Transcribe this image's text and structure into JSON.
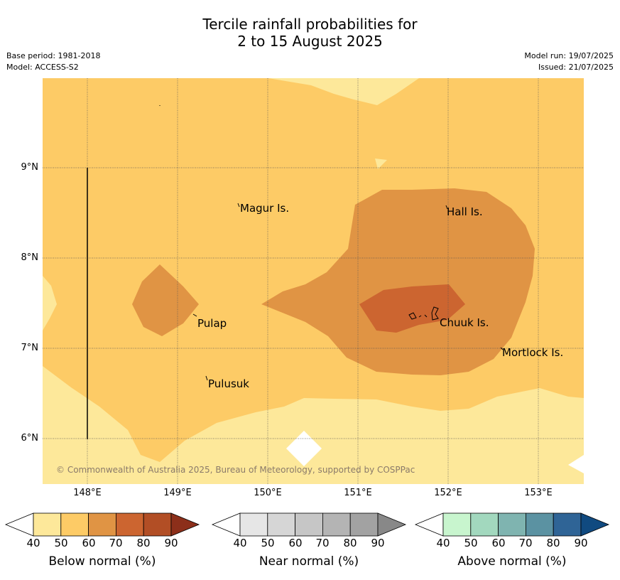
{
  "title": {
    "line1": "Tercile rainfall probabilities for",
    "line2": "2 to 15 August 2025"
  },
  "meta": {
    "base_period": "Base period: 1981-2018",
    "model": "Model: ACCESS-S2",
    "model_run": "Model run: 19/07/2025",
    "issued": "Issued: 21/07/2025"
  },
  "map": {
    "lat_labels": [
      "9°N",
      "8°N",
      "7°N",
      "6°N"
    ],
    "lon_labels": [
      "148°E",
      "149°E",
      "150°E",
      "151°E",
      "152°E",
      "153°E"
    ],
    "places": [
      "Magur Is.",
      "Hall Is.",
      "Pulap",
      "Chuuk Is.",
      "Mortlock Is.",
      "Pulusuk"
    ],
    "copyright": "© Commonwealth of Australia 2025, Bureau of Meteorology, supported by COSPPac",
    "colors": {
      "below_50": "#fde89a",
      "below_60": "#fdcb66",
      "below_70": "#e09444",
      "below_80": "#cc6530"
    }
  },
  "colorbars": [
    {
      "caption": "Below normal (%)",
      "ticks": [
        "40",
        "50",
        "60",
        "70",
        "80",
        "90"
      ],
      "colors": [
        "#fde89a",
        "#fdcb66",
        "#e09444",
        "#cc6530",
        "#b24e25",
        "#8c2f1a"
      ]
    },
    {
      "caption": "Near normal (%)",
      "ticks": [
        "40",
        "50",
        "60",
        "70",
        "80",
        "90"
      ],
      "colors": [
        "#e6e6e6",
        "#d6d6d6",
        "#c6c6c6",
        "#b4b4b4",
        "#a2a2a2",
        "#888888"
      ]
    },
    {
      "caption": "Above normal (%)",
      "ticks": [
        "40",
        "50",
        "60",
        "70",
        "80",
        "90"
      ],
      "colors": [
        "#c8f5ce",
        "#a2d8be",
        "#7fb4b0",
        "#5b92a2",
        "#2f6496",
        "#104a80"
      ]
    }
  ]
}
